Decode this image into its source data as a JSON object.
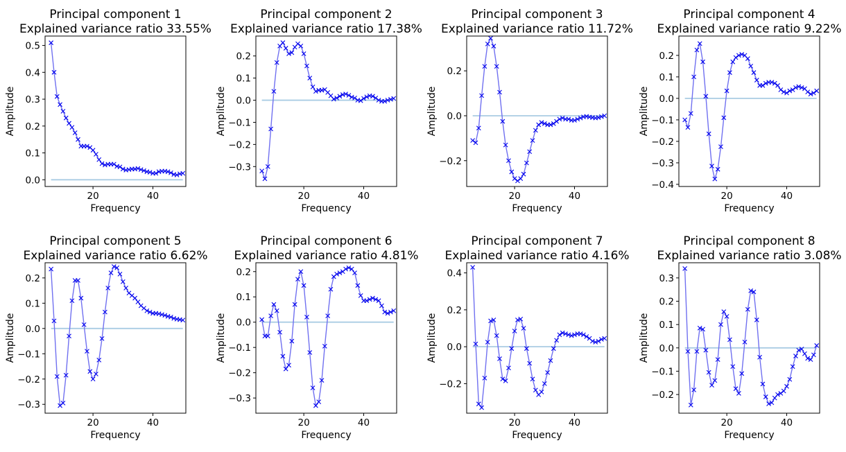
{
  "chart_data": [
    {
      "type": "line",
      "title": "Principal component 1",
      "subtitle": "Explained variance ratio 33.55%",
      "xlabel": "Frequency",
      "ylabel": "Amplitude",
      "xlim": [
        4,
        51
      ],
      "ylim": [
        -0.025,
        0.535
      ],
      "xticks": [
        20,
        40
      ],
      "yticks": [
        0.0,
        0.1,
        0.2,
        0.3,
        0.4,
        0.5
      ],
      "ytick_labels": [
        "0.0",
        "0.1",
        "0.2",
        "0.3",
        "0.4",
        "0.5"
      ],
      "x": [
        6,
        7,
        8,
        9,
        10,
        11,
        12,
        13,
        14,
        15,
        16,
        17,
        18,
        19,
        20,
        21,
        22,
        23,
        24,
        25,
        26,
        27,
        28,
        29,
        30,
        31,
        32,
        33,
        34,
        35,
        36,
        37,
        38,
        39,
        40,
        41,
        42,
        43,
        44,
        45,
        46,
        47,
        48,
        49,
        50
      ],
      "y": [
        0.51,
        0.4,
        0.31,
        0.28,
        0.255,
        0.23,
        0.21,
        0.195,
        0.175,
        0.15,
        0.125,
        0.125,
        0.125,
        0.12,
        0.11,
        0.095,
        0.075,
        0.06,
        0.055,
        0.058,
        0.058,
        0.058,
        0.05,
        0.048,
        0.04,
        0.036,
        0.038,
        0.04,
        0.04,
        0.042,
        0.038,
        0.034,
        0.03,
        0.028,
        0.024,
        0.024,
        0.03,
        0.032,
        0.032,
        0.03,
        0.026,
        0.02,
        0.018,
        0.022,
        0.024
      ],
      "baseline": 0,
      "line_color": "#7070f0",
      "marker_color": "#0000ee",
      "baseline_color": "#a9cce3"
    },
    {
      "type": "line",
      "title": "Principal component 2",
      "subtitle": "Explained variance ratio 17.38%",
      "xlabel": "Frequency",
      "ylabel": "Amplitude",
      "xlim": [
        4,
        51
      ],
      "ylim": [
        -0.39,
        0.29
      ],
      "xticks": [
        20,
        40
      ],
      "yticks": [
        -0.3,
        -0.2,
        -0.1,
        0.0,
        0.1,
        0.2
      ],
      "ytick_labels": [
        "−0.3",
        "−0.2",
        "−0.1",
        "0.0",
        "0.1",
        "0.2"
      ],
      "x": [
        6,
        7,
        8,
        9,
        10,
        11,
        12,
        13,
        14,
        15,
        16,
        17,
        18,
        19,
        20,
        21,
        22,
        23,
        24,
        25,
        26,
        27,
        28,
        29,
        30,
        31,
        32,
        33,
        34,
        35,
        36,
        37,
        38,
        39,
        40,
        41,
        42,
        43,
        44,
        45,
        46,
        47,
        48,
        49,
        50
      ],
      "y": [
        -0.32,
        -0.355,
        -0.3,
        -0.13,
        0.04,
        0.17,
        0.245,
        0.26,
        0.235,
        0.21,
        0.215,
        0.24,
        0.255,
        0.245,
        0.21,
        0.155,
        0.1,
        0.06,
        0.04,
        0.045,
        0.045,
        0.048,
        0.035,
        0.02,
        0.005,
        0.01,
        0.018,
        0.025,
        0.028,
        0.022,
        0.014,
        0.01,
        0.0,
        -0.002,
        0.008,
        0.015,
        0.02,
        0.018,
        0.01,
        0.0,
        -0.005,
        -0.005,
        0.0,
        0.004,
        0.008
      ],
      "baseline": 0,
      "line_color": "#7070f0",
      "marker_color": "#0000ee",
      "baseline_color": "#a9cce3"
    },
    {
      "type": "line",
      "title": "Principal component 3",
      "subtitle": "Explained variance ratio 11.72%",
      "xlabel": "Frequency",
      "ylabel": "Amplitude",
      "xlim": [
        4,
        51
      ],
      "ylim": [
        -0.315,
        0.355
      ],
      "xticks": [
        20,
        40
      ],
      "yticks": [
        -0.2,
        0.0,
        0.2
      ],
      "ytick_labels": [
        "−0.2",
        "0.0",
        "0.2"
      ],
      "x": [
        6,
        7,
        8,
        9,
        10,
        11,
        12,
        13,
        14,
        15,
        16,
        17,
        18,
        19,
        20,
        21,
        22,
        23,
        24,
        25,
        26,
        27,
        28,
        29,
        30,
        31,
        32,
        33,
        34,
        35,
        36,
        37,
        38,
        39,
        40,
        41,
        42,
        43,
        44,
        45,
        46,
        47,
        48,
        49,
        50
      ],
      "y": [
        -0.11,
        -0.12,
        -0.055,
        0.09,
        0.22,
        0.32,
        0.345,
        0.31,
        0.22,
        0.105,
        -0.025,
        -0.13,
        -0.2,
        -0.25,
        -0.28,
        -0.29,
        -0.28,
        -0.26,
        -0.21,
        -0.16,
        -0.11,
        -0.065,
        -0.04,
        -0.03,
        -0.035,
        -0.04,
        -0.04,
        -0.035,
        -0.025,
        -0.015,
        -0.01,
        -0.015,
        -0.015,
        -0.02,
        -0.02,
        -0.015,
        -0.01,
        -0.005,
        -0.003,
        -0.006,
        -0.008,
        -0.01,
        -0.008,
        -0.004,
        0.0
      ],
      "baseline": 0,
      "line_color": "#7070f0",
      "marker_color": "#0000ee",
      "baseline_color": "#a9cce3"
    },
    {
      "type": "line",
      "title": "Principal component 4",
      "subtitle": "Explained variance ratio 9.22%",
      "xlabel": "Frequency",
      "ylabel": "Amplitude",
      "xlim": [
        4,
        51
      ],
      "ylim": [
        -0.41,
        0.29
      ],
      "xticks": [
        20,
        40
      ],
      "yticks": [
        -0.4,
        -0.3,
        -0.2,
        -0.1,
        0.0,
        0.1,
        0.2
      ],
      "ytick_labels": [
        "−0.4",
        "−0.3",
        "−0.2",
        "−0.1",
        "0.0",
        "0.1",
        "0.2"
      ],
      "x": [
        6,
        7,
        8,
        9,
        10,
        11,
        12,
        13,
        14,
        15,
        16,
        17,
        18,
        19,
        20,
        21,
        22,
        23,
        24,
        25,
        26,
        27,
        28,
        29,
        30,
        31,
        32,
        33,
        34,
        35,
        36,
        37,
        38,
        39,
        40,
        41,
        42,
        43,
        44,
        45,
        46,
        47,
        48,
        49,
        50
      ],
      "y": [
        -0.1,
        -0.135,
        -0.07,
        0.1,
        0.225,
        0.255,
        0.17,
        0.01,
        -0.165,
        -0.315,
        -0.375,
        -0.33,
        -0.225,
        -0.09,
        0.035,
        0.12,
        0.17,
        0.19,
        0.2,
        0.205,
        0.2,
        0.185,
        0.15,
        0.12,
        0.085,
        0.06,
        0.06,
        0.07,
        0.075,
        0.075,
        0.07,
        0.06,
        0.04,
        0.03,
        0.025,
        0.035,
        0.04,
        0.05,
        0.055,
        0.05,
        0.045,
        0.03,
        0.02,
        0.025,
        0.035
      ],
      "baseline": 0,
      "line_color": "#7070f0",
      "marker_color": "#0000ee",
      "baseline_color": "#a9cce3"
    },
    {
      "type": "line",
      "title": "Principal component 5",
      "subtitle": "Explained variance ratio 6.62%",
      "xlabel": "Frequency",
      "ylabel": "Amplitude",
      "xlim": [
        4,
        51
      ],
      "ylim": [
        -0.335,
        0.26
      ],
      "xticks": [
        20,
        40
      ],
      "yticks": [
        -0.3,
        -0.2,
        -0.1,
        0.0,
        0.1,
        0.2
      ],
      "ytick_labels": [
        "−0.3",
        "−0.2",
        "−0.1",
        "0.0",
        "0.1",
        "0.2"
      ],
      "x": [
        6,
        7,
        8,
        9,
        10,
        11,
        12,
        13,
        14,
        15,
        16,
        17,
        18,
        19,
        20,
        21,
        22,
        23,
        24,
        25,
        26,
        27,
        28,
        29,
        30,
        31,
        32,
        33,
        34,
        35,
        36,
        37,
        38,
        39,
        40,
        41,
        42,
        43,
        44,
        45,
        46,
        47,
        48,
        49,
        50
      ],
      "y": [
        0.235,
        0.03,
        -0.19,
        -0.305,
        -0.295,
        -0.185,
        -0.03,
        0.11,
        0.19,
        0.19,
        0.12,
        0.015,
        -0.09,
        -0.17,
        -0.2,
        -0.18,
        -0.125,
        -0.04,
        0.065,
        0.16,
        0.22,
        0.245,
        0.24,
        0.215,
        0.185,
        0.16,
        0.14,
        0.13,
        0.12,
        0.105,
        0.09,
        0.08,
        0.07,
        0.065,
        0.06,
        0.06,
        0.058,
        0.055,
        0.052,
        0.048,
        0.045,
        0.04,
        0.037,
        0.035,
        0.033
      ],
      "baseline": 0,
      "line_color": "#7070f0",
      "marker_color": "#0000ee",
      "baseline_color": "#a9cce3"
    },
    {
      "type": "line",
      "title": "Principal component 6",
      "subtitle": "Explained variance ratio 4.81%",
      "xlabel": "Frequency",
      "ylabel": "Amplitude",
      "xlim": [
        4,
        51
      ],
      "ylim": [
        -0.36,
        0.235
      ],
      "xticks": [
        20,
        40
      ],
      "yticks": [
        -0.3,
        -0.2,
        -0.1,
        0.0,
        0.1,
        0.2
      ],
      "ytick_labels": [
        "−0.3",
        "−0.2",
        "−0.1",
        "0.0",
        "0.1",
        "0.2"
      ],
      "x": [
        6,
        7,
        8,
        9,
        10,
        11,
        12,
        13,
        14,
        15,
        16,
        17,
        18,
        19,
        20,
        21,
        22,
        23,
        24,
        25,
        26,
        27,
        28,
        29,
        30,
        31,
        32,
        33,
        34,
        35,
        36,
        37,
        38,
        39,
        40,
        41,
        42,
        43,
        44,
        45,
        46,
        47,
        48,
        49,
        50
      ],
      "y": [
        0.01,
        -0.055,
        -0.055,
        0.025,
        0.07,
        0.045,
        -0.04,
        -0.135,
        -0.185,
        -0.17,
        -0.075,
        0.07,
        0.17,
        0.2,
        0.145,
        0.02,
        -0.12,
        -0.26,
        -0.33,
        -0.315,
        -0.23,
        -0.095,
        0.025,
        0.13,
        0.18,
        0.19,
        0.195,
        0.2,
        0.21,
        0.215,
        0.21,
        0.195,
        0.145,
        0.105,
        0.085,
        0.085,
        0.09,
        0.095,
        0.09,
        0.085,
        0.065,
        0.04,
        0.035,
        0.04,
        0.045
      ],
      "baseline": 0,
      "line_color": "#7070f0",
      "marker_color": "#0000ee",
      "baseline_color": "#a9cce3"
    },
    {
      "type": "line",
      "title": "Principal component 7",
      "subtitle": "Explained variance ratio 4.16%",
      "xlabel": "Frequency",
      "ylabel": "Amplitude",
      "xlim": [
        4,
        51
      ],
      "ylim": [
        -0.36,
        0.455
      ],
      "xticks": [
        20,
        40
      ],
      "yticks": [
        -0.2,
        0.0,
        0.2,
        0.4
      ],
      "ytick_labels": [
        "−0.2",
        "0.0",
        "0.2",
        "0.4"
      ],
      "x": [
        6,
        7,
        8,
        9,
        10,
        11,
        12,
        13,
        14,
        15,
        16,
        17,
        18,
        19,
        20,
        21,
        22,
        23,
        24,
        25,
        26,
        27,
        28,
        29,
        30,
        31,
        32,
        33,
        34,
        35,
        36,
        37,
        38,
        39,
        40,
        41,
        42,
        43,
        44,
        45,
        46,
        47,
        48,
        49,
        50
      ],
      "y": [
        0.43,
        0.015,
        -0.31,
        -0.33,
        -0.17,
        0.025,
        0.14,
        0.145,
        0.06,
        -0.065,
        -0.175,
        -0.185,
        -0.115,
        -0.01,
        0.085,
        0.145,
        0.15,
        0.1,
        -0.01,
        -0.09,
        -0.175,
        -0.235,
        -0.26,
        -0.245,
        -0.2,
        -0.14,
        -0.075,
        -0.01,
        0.035,
        0.065,
        0.075,
        0.07,
        0.065,
        0.06,
        0.065,
        0.07,
        0.07,
        0.065,
        0.055,
        0.045,
        0.03,
        0.025,
        0.03,
        0.04,
        0.045
      ],
      "baseline": 0,
      "line_color": "#7070f0",
      "marker_color": "#0000ee",
      "baseline_color": "#a9cce3"
    },
    {
      "type": "line",
      "title": "Principal component 8",
      "subtitle": "Explained variance ratio 3.08%",
      "xlabel": "Frequency",
      "ylabel": "Amplitude",
      "xlim": [
        4,
        51
      ],
      "ylim": [
        -0.28,
        0.365
      ],
      "xticks": [
        20,
        40
      ],
      "yticks": [
        -0.2,
        -0.1,
        0.0,
        0.1,
        0.2,
        0.3
      ],
      "ytick_labels": [
        "−0.2",
        "−0.1",
        "0.0",
        "0.1",
        "0.2",
        "0.3"
      ],
      "x": [
        6,
        7,
        8,
        9,
        10,
        11,
        12,
        13,
        14,
        15,
        16,
        17,
        18,
        19,
        20,
        21,
        22,
        23,
        24,
        25,
        26,
        27,
        28,
        29,
        30,
        31,
        32,
        33,
        34,
        35,
        36,
        37,
        38,
        39,
        40,
        41,
        42,
        43,
        44,
        45,
        46,
        47,
        48,
        49,
        50
      ],
      "y": [
        0.34,
        -0.015,
        -0.245,
        -0.18,
        -0.015,
        0.085,
        0.08,
        -0.01,
        -0.105,
        -0.16,
        -0.14,
        -0.05,
        0.1,
        0.155,
        0.135,
        0.035,
        -0.08,
        -0.175,
        -0.195,
        -0.11,
        0.025,
        0.165,
        0.245,
        0.24,
        0.12,
        -0.04,
        -0.155,
        -0.21,
        -0.24,
        -0.235,
        -0.215,
        -0.2,
        -0.195,
        -0.185,
        -0.165,
        -0.135,
        -0.08,
        -0.035,
        -0.01,
        -0.005,
        -0.025,
        -0.045,
        -0.05,
        -0.03,
        0.01
      ],
      "baseline": 0,
      "line_color": "#7070f0",
      "marker_color": "#0000ee",
      "baseline_color": "#a9cce3"
    }
  ]
}
